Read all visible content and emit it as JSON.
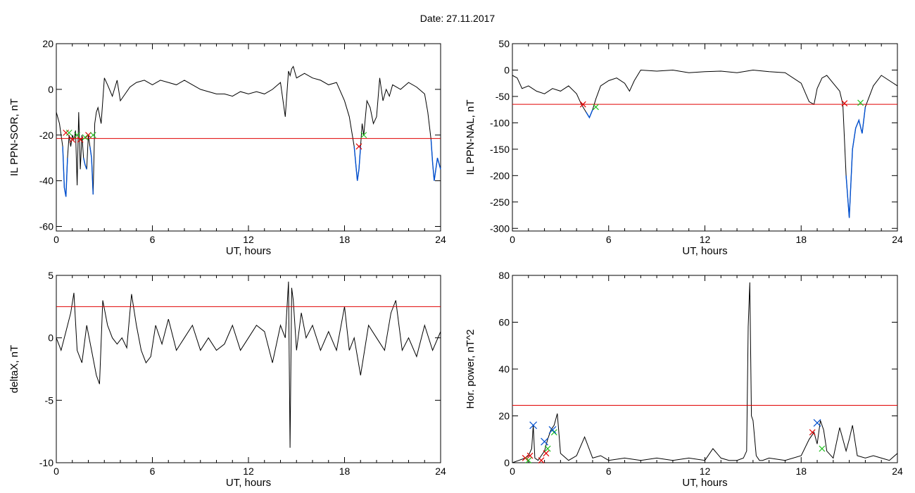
{
  "page": {
    "title": "Date:  27.11.2017"
  },
  "colors": {
    "trace": "#000000",
    "threshold": "#e00000",
    "highlight": "#0050d0",
    "start_marker": "#e00000",
    "end_marker": "#20c020",
    "peak_marker": "#0050d0"
  },
  "chart_data": [
    {
      "id": "sor",
      "type": "line",
      "xlabel": "UT, hours",
      "ylabel": "IL PPN-SOR, nT",
      "xlim": [
        0,
        24
      ],
      "ylim": [
        -62,
        20
      ],
      "xticks": [
        0,
        6,
        12,
        18,
        24
      ],
      "yticks": [
        -60,
        -40,
        -20,
        0,
        20
      ],
      "threshold": -21.5,
      "x": [
        0,
        0.2,
        0.4,
        0.5,
        0.6,
        0.7,
        0.8,
        0.9,
        1.0,
        1.1,
        1.2,
        1.3,
        1.4,
        1.5,
        1.6,
        1.7,
        1.8,
        1.9,
        2.0,
        2.1,
        2.2,
        2.3,
        2.4,
        2.5,
        2.6,
        2.8,
        3.0,
        3.2,
        3.5,
        3.8,
        4.0,
        4.3,
        4.6,
        5.0,
        5.5,
        6.0,
        6.5,
        7.0,
        7.5,
        8.0,
        8.5,
        9.0,
        9.5,
        10.0,
        10.5,
        11.0,
        11.5,
        12.0,
        12.5,
        13.0,
        13.5,
        14.0,
        14.3,
        14.5,
        14.6,
        14.7,
        14.8,
        15.0,
        15.5,
        16.0,
        16.5,
        17.0,
        17.5,
        18.0,
        18.3,
        18.6,
        18.8,
        18.9,
        19.0,
        19.1,
        19.2,
        19.4,
        19.6,
        19.8,
        20.0,
        20.2,
        20.4,
        20.6,
        20.8,
        21.0,
        21.5,
        22.0,
        22.5,
        23.0,
        23.2,
        23.4,
        23.5,
        23.6,
        23.8,
        24.0
      ],
      "y": [
        -10,
        -15,
        -25,
        -43,
        -47,
        -30,
        -20,
        -25,
        -20,
        -22,
        -18,
        -42,
        -10,
        -35,
        -20,
        -30,
        -33,
        -35,
        -20,
        -25,
        -30,
        -46,
        -15,
        -10,
        -8,
        -15,
        5,
        2,
        -3,
        4,
        -5,
        -2,
        1,
        3,
        4,
        2,
        4,
        3,
        2,
        4,
        2,
        0,
        -1,
        -2,
        -2,
        -3,
        -1,
        -2,
        -1,
        -2,
        0,
        3,
        -12,
        8,
        6,
        9,
        10,
        5,
        7,
        5,
        4,
        2,
        3,
        -5,
        -12,
        -25,
        -40,
        -35,
        -25,
        -15,
        -20,
        -5,
        -8,
        -15,
        -12,
        5,
        -5,
        0,
        -3,
        2,
        0,
        3,
        1,
        -2,
        -10,
        -22,
        -32,
        -40,
        -30,
        -35
      ],
      "start_markers": [
        {
          "x": 0.6,
          "y": -19
        },
        {
          "x": 1.0,
          "y": -22
        },
        {
          "x": 1.5,
          "y": -22
        },
        {
          "x": 2.0,
          "y": -20
        },
        {
          "x": 18.9,
          "y": -25
        }
      ],
      "end_markers": [
        {
          "x": 0.8,
          "y": -19
        },
        {
          "x": 1.3,
          "y": -20
        },
        {
          "x": 1.8,
          "y": -21
        },
        {
          "x": 2.3,
          "y": -20
        },
        {
          "x": 19.2,
          "y": -20
        }
      ]
    },
    {
      "id": "nal",
      "type": "line",
      "xlabel": "UT, hours",
      "ylabel": "IL PPN-NAL, nT",
      "xlim": [
        0,
        24
      ],
      "ylim": [
        -305,
        50
      ],
      "xticks": [
        0,
        6,
        12,
        18,
        24
      ],
      "yticks": [
        -300,
        -250,
        -200,
        -150,
        -100,
        -50,
        0,
        50
      ],
      "threshold": -65,
      "x": [
        0,
        0.3,
        0.6,
        1.0,
        1.5,
        2.0,
        2.5,
        3.0,
        3.5,
        4.0,
        4.3,
        4.6,
        4.8,
        5.0,
        5.2,
        5.5,
        6.0,
        6.5,
        7.0,
        7.3,
        7.6,
        8.0,
        9.0,
        10.0,
        11.0,
        12.0,
        13.0,
        14.0,
        15.0,
        16.0,
        17.0,
        18.0,
        18.5,
        18.8,
        19.0,
        19.3,
        19.6,
        20.0,
        20.4,
        20.6,
        20.8,
        21.0,
        21.2,
        21.4,
        21.6,
        21.8,
        22.0,
        22.5,
        23.0,
        23.5,
        24.0
      ],
      "y": [
        -10,
        -15,
        -35,
        -30,
        -40,
        -45,
        -35,
        -40,
        -30,
        -45,
        -65,
        -80,
        -90,
        -75,
        -55,
        -30,
        -20,
        -15,
        -25,
        -40,
        -20,
        0,
        -2,
        0,
        -5,
        -3,
        -2,
        -5,
        0,
        -3,
        -5,
        -25,
        -60,
        -65,
        -35,
        -15,
        -10,
        -25,
        -40,
        -65,
        -200,
        -280,
        -150,
        -110,
        -95,
        -120,
        -70,
        -30,
        -10,
        -20,
        -30
      ],
      "start_markers": [
        {
          "x": 4.4,
          "y": -65
        },
        {
          "x": 20.7,
          "y": -63
        }
      ],
      "end_markers": [
        {
          "x": 5.2,
          "y": -70
        },
        {
          "x": 21.7,
          "y": -62
        }
      ]
    },
    {
      "id": "deltax",
      "type": "line",
      "xlabel": "UT, hours",
      "ylabel": "deltaX, nT",
      "xlim": [
        0,
        24
      ],
      "ylim": [
        -10,
        5
      ],
      "xticks": [
        0,
        6,
        12,
        18,
        24
      ],
      "yticks": [
        -10,
        -5,
        0,
        5
      ],
      "threshold": 2.5,
      "x": [
        0,
        0.3,
        0.6,
        0.9,
        1.1,
        1.3,
        1.6,
        1.9,
        2.2,
        2.5,
        2.7,
        2.9,
        3.2,
        3.5,
        3.8,
        4.1,
        4.4,
        4.7,
        5.0,
        5.3,
        5.6,
        5.9,
        6.2,
        6.6,
        7.0,
        7.5,
        8.0,
        8.5,
        9.0,
        9.5,
        10.0,
        10.5,
        11.0,
        11.5,
        12.0,
        12.5,
        13.0,
        13.5,
        14.0,
        14.3,
        14.5,
        14.6,
        14.7,
        14.8,
        15.0,
        15.3,
        15.6,
        16.0,
        16.5,
        17.0,
        17.5,
        18.0,
        18.3,
        18.6,
        19.0,
        19.5,
        20.0,
        20.5,
        20.9,
        21.2,
        21.6,
        22.0,
        22.5,
        23.0,
        23.5,
        24.0
      ],
      "y": [
        0,
        -1,
        0.5,
        2,
        3.6,
        -1,
        -2,
        1,
        -1,
        -3,
        -3.7,
        3,
        1,
        0,
        -0.5,
        0,
        -0.8,
        3.5,
        1,
        -1,
        -2,
        -1.5,
        1,
        -0.5,
        1.5,
        -1,
        0,
        1,
        -1,
        0,
        -1,
        -0.5,
        1,
        -1,
        0,
        1,
        0.5,
        -2,
        1,
        0,
        4.5,
        -8.8,
        4,
        3,
        -1,
        2,
        0,
        1,
        -1,
        0.5,
        -1,
        2.5,
        -1,
        0,
        -3,
        1,
        0,
        -1,
        2,
        3,
        -1,
        0,
        -1.5,
        1,
        -1,
        0.5
      ],
      "start_markers": [],
      "end_markers": []
    },
    {
      "id": "power",
      "type": "line",
      "xlabel": "UT, hours",
      "ylabel": "Hor. power, nT^2",
      "xlim": [
        0,
        24
      ],
      "ylim": [
        0,
        80
      ],
      "xticks": [
        0,
        6,
        12,
        18,
        24
      ],
      "yticks": [
        0,
        20,
        40,
        60,
        80
      ],
      "threshold": 24.5,
      "x": [
        0,
        0.4,
        0.8,
        1.0,
        1.2,
        1.3,
        1.4,
        1.6,
        1.8,
        2.0,
        2.2,
        2.4,
        2.6,
        2.8,
        3.0,
        3.5,
        4.0,
        4.5,
        5.0,
        5.5,
        6.0,
        7.0,
        8.0,
        9.0,
        10.0,
        11.0,
        12.0,
        12.5,
        13.0,
        13.5,
        14.0,
        14.4,
        14.6,
        14.7,
        14.8,
        14.9,
        15.0,
        15.2,
        15.4,
        15.6,
        16.0,
        17.0,
        18.0,
        18.5,
        18.8,
        19.0,
        19.2,
        19.4,
        19.6,
        20.0,
        20.4,
        20.8,
        21.0,
        21.2,
        21.5,
        22.0,
        22.5,
        23.0,
        23.5,
        24.0
      ],
      "y": [
        0,
        1,
        2,
        3,
        6,
        16,
        2,
        1,
        3,
        5,
        10,
        14,
        16,
        21,
        4,
        1,
        3,
        11,
        2,
        3,
        1,
        2,
        1,
        2,
        1,
        2,
        1,
        6,
        2,
        1,
        1,
        2,
        5,
        58,
        77,
        20,
        18,
        3,
        1,
        1,
        2,
        1,
        3,
        10,
        13,
        8,
        18,
        14,
        5,
        2,
        15,
        5,
        10,
        16,
        3,
        2,
        3,
        2,
        1,
        4
      ],
      "start_markers": [
        {
          "x": 0.8,
          "y": 2
        },
        {
          "x": 1.1,
          "y": 3
        },
        {
          "x": 1.8,
          "y": 1
        },
        {
          "x": 2.1,
          "y": 4
        },
        {
          "x": 18.7,
          "y": 13
        }
      ],
      "end_markers": [
        {
          "x": 1.0,
          "y": 1
        },
        {
          "x": 2.2,
          "y": 6
        },
        {
          "x": 2.6,
          "y": 13
        },
        {
          "x": 19.3,
          "y": 6
        }
      ],
      "peak_markers": [
        {
          "x": 1.3,
          "y": 16
        },
        {
          "x": 2.0,
          "y": 9
        },
        {
          "x": 2.5,
          "y": 14
        },
        {
          "x": 19.0,
          "y": 17
        }
      ]
    }
  ]
}
